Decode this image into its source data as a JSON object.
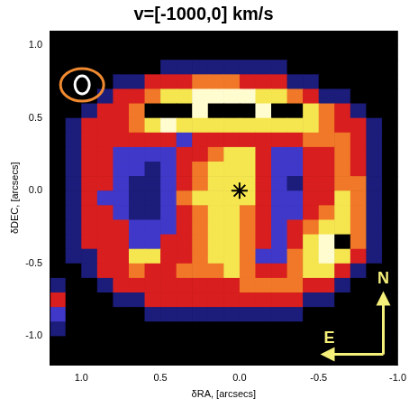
{
  "chart_data": {
    "type": "heatmap",
    "title": "v=[-1000,0] km/s",
    "x_label": "δRA, [arcsecs]",
    "y_label": "δDEC, [arcsecs]",
    "xlim": [
      1.2,
      -1.0
    ],
    "ylim": [
      -1.2,
      1.1
    ],
    "xticks": [
      {
        "value": 1,
        "label": "1.0"
      },
      {
        "value": 0.5,
        "label": "0.5"
      },
      {
        "value": 0,
        "label": "0.0"
      },
      {
        "value": -0.5,
        "label": "-0.5"
      },
      {
        "value": -1,
        "label": "-1.0"
      }
    ],
    "yticks": [
      {
        "value": -1,
        "label": "-1.0"
      },
      {
        "value": -0.5,
        "label": "-0.5"
      },
      {
        "value": 0,
        "label": "0.0"
      },
      {
        "value": 0.5,
        "label": "0.5"
      },
      {
        "value": 1,
        "label": "1.0"
      }
    ],
    "grid": false,
    "colors": [
      "#000000",
      "#1c1c7a",
      "#4038c8",
      "#d81e1e",
      "#f07828",
      "#f5e650",
      "#fffcd0",
      "#000000"
    ],
    "cell_x": [
      1.15,
      1.05,
      0.95,
      0.85,
      0.75,
      0.65,
      0.55,
      0.45,
      0.35,
      0.25,
      0.15,
      0.05,
      -0.05,
      -0.15,
      -0.25,
      -0.35,
      -0.45,
      -0.55,
      -0.65,
      -0.75,
      -0.85,
      -0.95
    ],
    "cell_y": [
      1.05,
      0.95,
      0.85,
      0.75,
      0.65,
      0.55,
      0.45,
      0.35,
      0.25,
      0.15,
      0.05,
      -0.05,
      -0.15,
      -0.25,
      -0.35,
      -0.45,
      -0.55,
      -0.65,
      -0.75,
      -0.85,
      -0.95,
      -1.05,
      -1.15
    ],
    "cells": [
      [
        0,
        0,
        0,
        0,
        0,
        0,
        0,
        0,
        0,
        0,
        0,
        0,
        0,
        0,
        0,
        0,
        0,
        0,
        0,
        0,
        0,
        0
      ],
      [
        0,
        0,
        0,
        0,
        0,
        0,
        0,
        0,
        0,
        0,
        0,
        0,
        0,
        0,
        0,
        0,
        0,
        0,
        0,
        0,
        0,
        0
      ],
      [
        0,
        0,
        0,
        0,
        0,
        0,
        0,
        1,
        1,
        1,
        1,
        1,
        1,
        1,
        1,
        0,
        0,
        0,
        0,
        0,
        0,
        0
      ],
      [
        0,
        0,
        0,
        0,
        1,
        1,
        3,
        3,
        3,
        4,
        4,
        4,
        3,
        3,
        3,
        1,
        1,
        0,
        0,
        0,
        0,
        0
      ],
      [
        0,
        0,
        0,
        1,
        3,
        3,
        4,
        5,
        5,
        6,
        6,
        6,
        6,
        5,
        5,
        4,
        3,
        1,
        1,
        0,
        0,
        0
      ],
      [
        0,
        0,
        1,
        3,
        3,
        4,
        7,
        7,
        7,
        6,
        7,
        7,
        7,
        6,
        7,
        7,
        5,
        4,
        3,
        1,
        0,
        0
      ],
      [
        0,
        1,
        3,
        3,
        3,
        4,
        5,
        6,
        5,
        5,
        5,
        5,
        5,
        5,
        5,
        5,
        5,
        4,
        3,
        3,
        1,
        0
      ],
      [
        0,
        1,
        3,
        3,
        3,
        3,
        3,
        3,
        2,
        3,
        3,
        3,
        3,
        3,
        3,
        3,
        4,
        4,
        4,
        3,
        1,
        0
      ],
      [
        0,
        1,
        3,
        3,
        2,
        2,
        2,
        2,
        3,
        3,
        4,
        5,
        5,
        3,
        2,
        2,
        3,
        3,
        4,
        3,
        1,
        0
      ],
      [
        0,
        1,
        3,
        3,
        2,
        2,
        1,
        2,
        3,
        4,
        5,
        5,
        5,
        3,
        2,
        2,
        3,
        3,
        4,
        3,
        1,
        0
      ],
      [
        0,
        1,
        3,
        3,
        2,
        1,
        1,
        2,
        3,
        4,
        5,
        5,
        5,
        3,
        2,
        1,
        3,
        3,
        4,
        4,
        1,
        0
      ],
      [
        0,
        1,
        3,
        2,
        2,
        1,
        1,
        2,
        4,
        5,
        5,
        5,
        5,
        3,
        2,
        2,
        3,
        3,
        5,
        4,
        1,
        0
      ],
      [
        0,
        1,
        3,
        3,
        2,
        1,
        1,
        2,
        3,
        4,
        5,
        5,
        4,
        3,
        2,
        2,
        3,
        4,
        5,
        4,
        1,
        0
      ],
      [
        0,
        1,
        3,
        3,
        3,
        2,
        2,
        2,
        3,
        4,
        5,
        5,
        4,
        3,
        2,
        3,
        4,
        5,
        5,
        4,
        1,
        0
      ],
      [
        0,
        1,
        3,
        3,
        3,
        2,
        2,
        3,
        3,
        4,
        5,
        5,
        4,
        3,
        2,
        3,
        5,
        6,
        7,
        4,
        1,
        0
      ],
      [
        0,
        1,
        1,
        3,
        3,
        5,
        5,
        3,
        3,
        4,
        5,
        5,
        4,
        2,
        2,
        4,
        5,
        6,
        5,
        3,
        1,
        0
      ],
      [
        0,
        0,
        1,
        3,
        3,
        4,
        3,
        3,
        4,
        4,
        4,
        5,
        4,
        3,
        3,
        4,
        5,
        5,
        3,
        1,
        0,
        0
      ],
      [
        1,
        0,
        0,
        1,
        3,
        3,
        3,
        3,
        3,
        3,
        3,
        3,
        4,
        4,
        4,
        4,
        3,
        3,
        1,
        0,
        0,
        0
      ],
      [
        3,
        0,
        0,
        0,
        1,
        1,
        3,
        3,
        3,
        3,
        3,
        3,
        3,
        3,
        3,
        3,
        1,
        1,
        0,
        0,
        0,
        0
      ],
      [
        2,
        0,
        0,
        0,
        0,
        0,
        1,
        1,
        1,
        1,
        1,
        1,
        1,
        1,
        1,
        1,
        0,
        0,
        0,
        0,
        0,
        0
      ],
      [
        1,
        0,
        0,
        0,
        0,
        0,
        0,
        0,
        0,
        0,
        0,
        0,
        0,
        0,
        0,
        0,
        0,
        0,
        0,
        0,
        0,
        0
      ],
      [
        0,
        0,
        0,
        0,
        0,
        0,
        0,
        0,
        0,
        0,
        0,
        0,
        0,
        0,
        0,
        0,
        0,
        0,
        0,
        0,
        0,
        0
      ],
      [
        0,
        0,
        0,
        0,
        0,
        0,
        0,
        0,
        0,
        0,
        0,
        0,
        0,
        0,
        0,
        0,
        0,
        0,
        0,
        0,
        0,
        0
      ]
    ],
    "center": {
      "x": 0,
      "y": 0
    },
    "marker": "star",
    "compass": {
      "north": "N",
      "east": "E"
    }
  }
}
